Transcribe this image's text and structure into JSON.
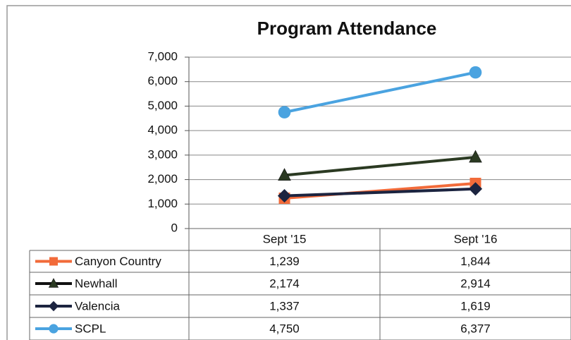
{
  "chart_data": {
    "type": "line",
    "title": "Program Attendance",
    "categories": [
      "Sept '15",
      "Sept '16"
    ],
    "series": [
      {
        "name": "Canyon Country",
        "color": "#f26b3a",
        "marker": "square",
        "values": [
          1239,
          1844
        ],
        "value_labels": [
          "1,239",
          "1,844"
        ]
      },
      {
        "name": "Newhall",
        "color": "#2b3a22",
        "marker": "triangle",
        "values": [
          2174,
          2914
        ],
        "value_labels": [
          "2,174",
          "2,914"
        ]
      },
      {
        "name": "Valencia",
        "color": "#1c2440",
        "marker": "diamond",
        "values": [
          1337,
          1619
        ],
        "value_labels": [
          "1,337",
          "1,619"
        ]
      },
      {
        "name": "SCPL",
        "color": "#4aa3e0",
        "marker": "circle",
        "values": [
          4750,
          6377
        ],
        "value_labels": [
          "4,750",
          "6,377"
        ]
      }
    ],
    "ylim": [
      0,
      7000
    ],
    "yticks": [
      0,
      {
        "value": 1000,
        "label": "1,000"
      },
      {
        "value": 2000,
        "label": "2,000"
      },
      {
        "value": 3000,
        "label": "3,000"
      },
      {
        "value": 4000,
        "label": "4,000"
      },
      {
        "value": 5000,
        "label": "5,000"
      },
      {
        "value": 6000,
        "label": "6,000"
      },
      {
        "value": 7000,
        "label": "7,000"
      }
    ],
    "grid": true,
    "legend": "table"
  }
}
